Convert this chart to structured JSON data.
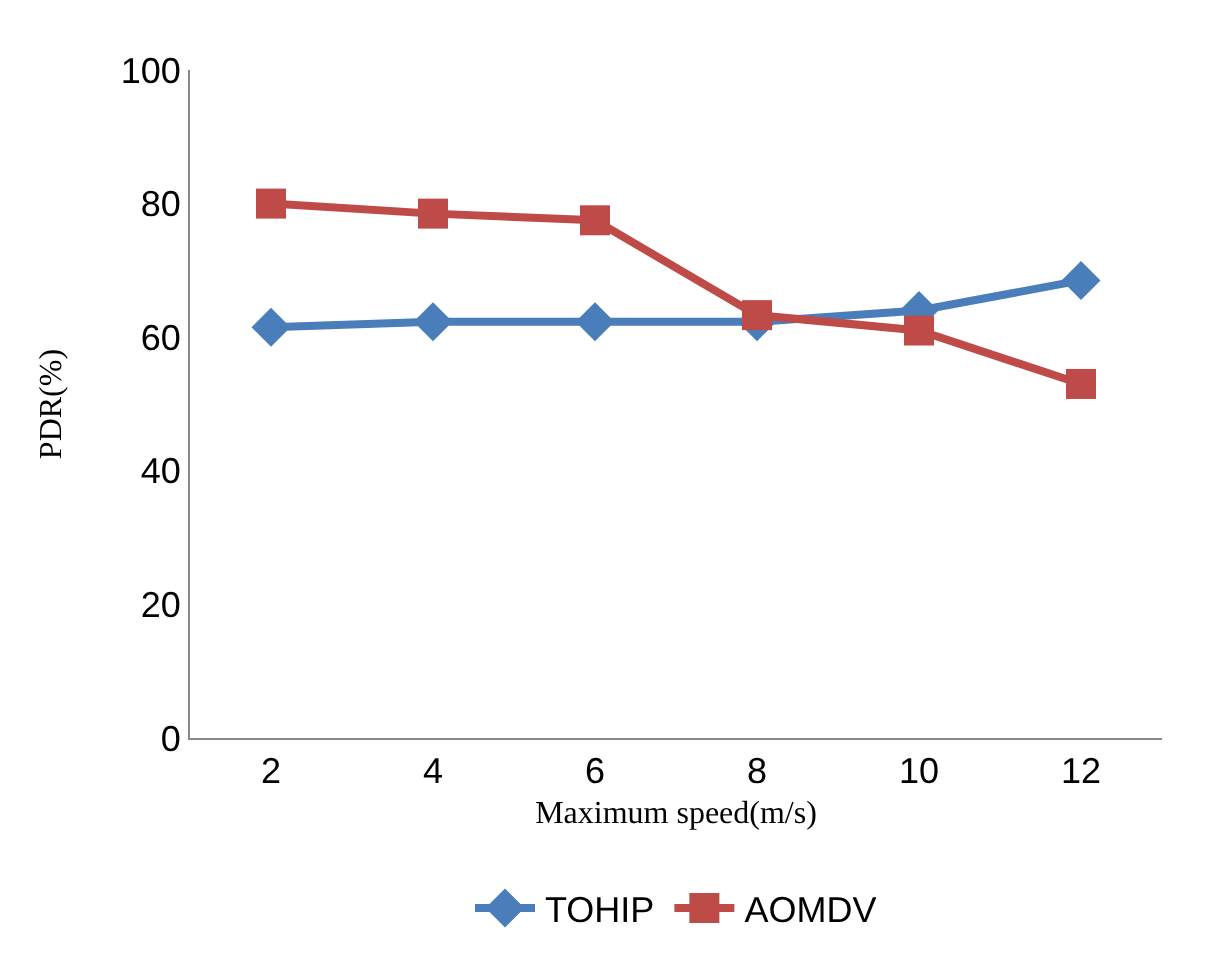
{
  "chart_data": {
    "type": "line",
    "xlabel": "Maximum speed(m/s)",
    "ylabel": "PDR(%)",
    "categories": [
      "2",
      "4",
      "6",
      "8",
      "10",
      "12"
    ],
    "series": [
      {
        "name": "TOHIP",
        "color": "#4a7ebb",
        "marker": "diamond",
        "values": [
          61.5,
          62.3,
          62.3,
          62.3,
          64,
          68.5
        ]
      },
      {
        "name": "AOMDV",
        "color": "#be4b48",
        "marker": "square",
        "values": [
          80,
          78.5,
          77.5,
          63.3,
          61,
          53
        ]
      }
    ],
    "ylim": [
      0,
      100
    ],
    "yticks": [
      0,
      20,
      40,
      60,
      80,
      100
    ],
    "legend": "bottom",
    "line_style": "solid"
  }
}
